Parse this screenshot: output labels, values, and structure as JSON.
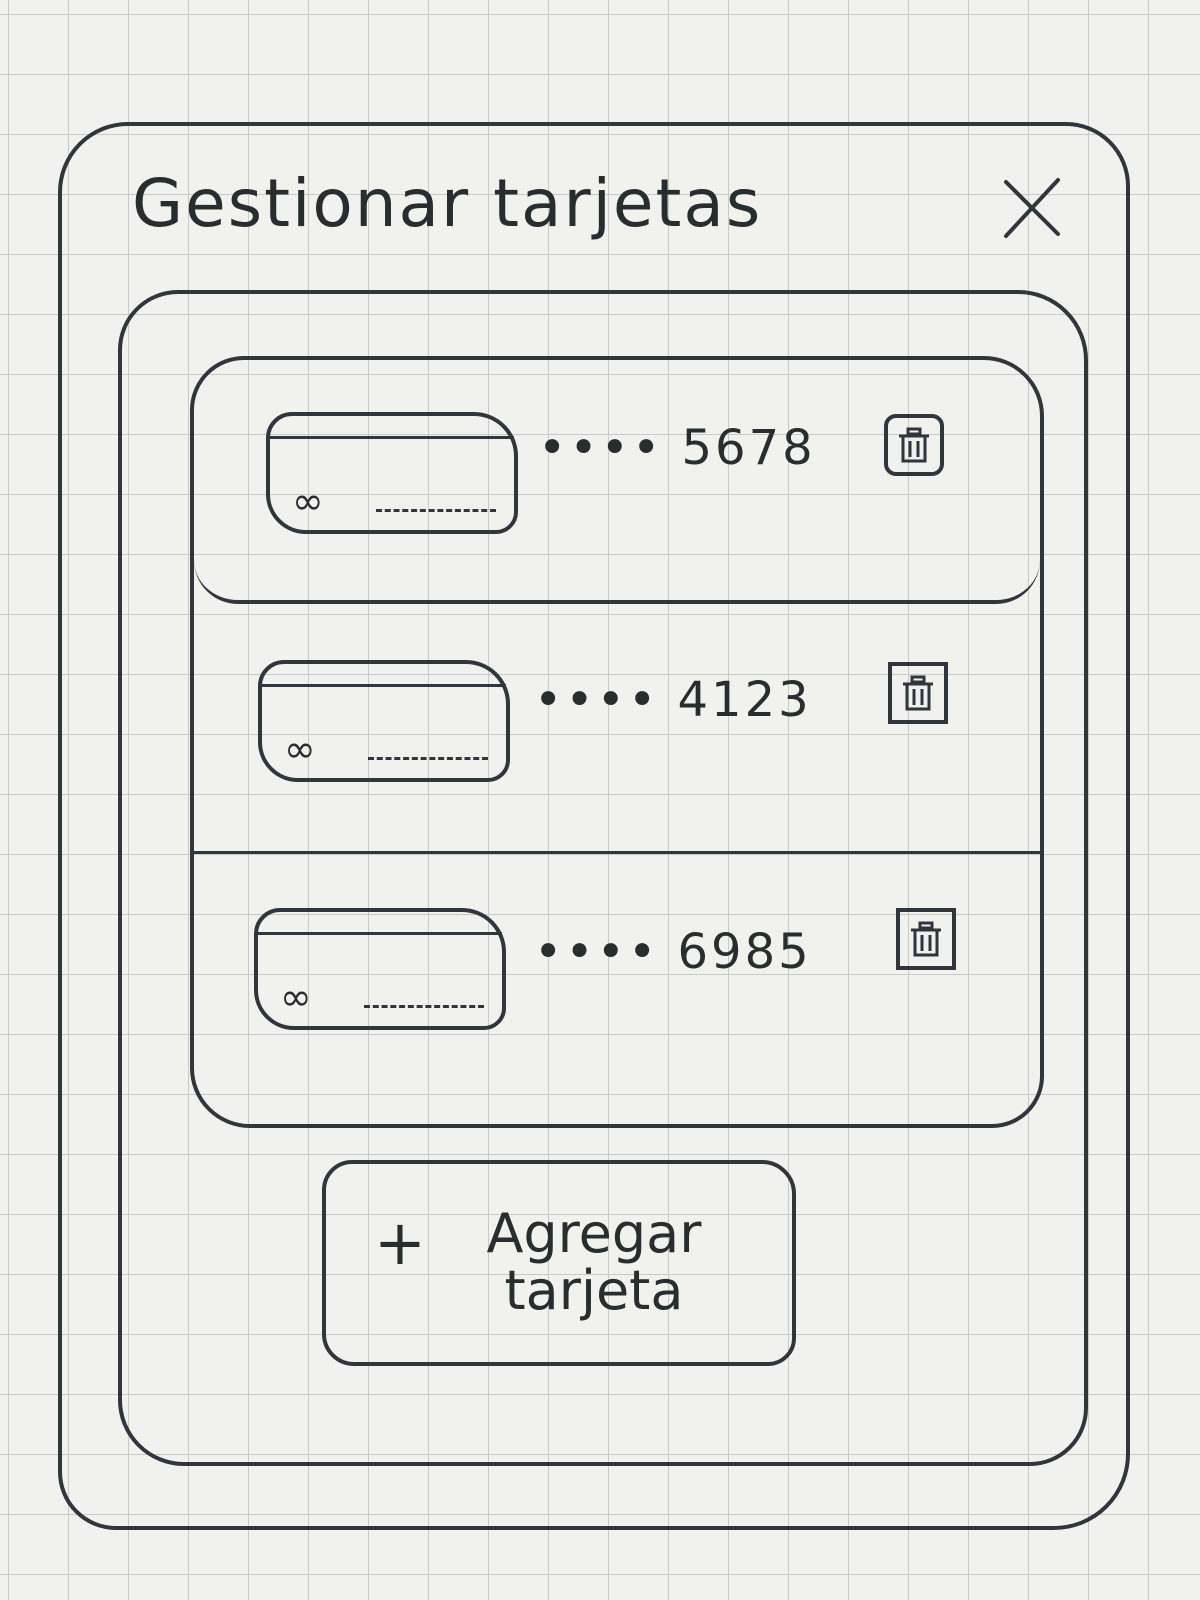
{
  "modal": {
    "title": "Gestionar tarjetas",
    "close_glyph": "X",
    "close_icon": "close-icon"
  },
  "cards": [
    {
      "logo": "∞",
      "number": "•••• 5678",
      "delete_icon": "trash-icon"
    },
    {
      "logo": "∞",
      "number": "•••• 4123",
      "delete_icon": "trash-icon"
    },
    {
      "logo": "∞",
      "number": "•••• 6985",
      "delete_icon": "trash-icon"
    }
  ],
  "add_card": {
    "plus": "+",
    "label": "Agregar tarjeta"
  },
  "colors": {
    "ink": "#34353a",
    "paper": "#f1f1ef",
    "grid": "#c9cac8"
  }
}
